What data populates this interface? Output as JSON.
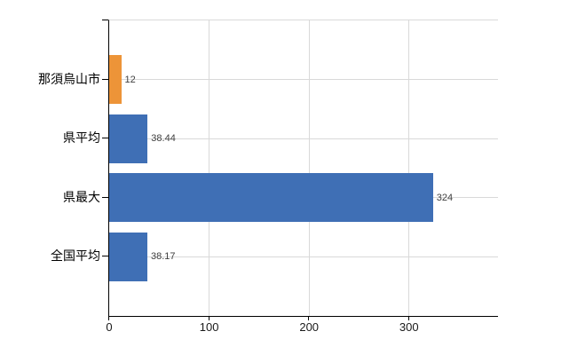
{
  "chart_data": {
    "type": "bar",
    "orientation": "horizontal",
    "title": "",
    "legend": "none",
    "grid": "on",
    "categories": [
      "那須烏山市",
      "県平均",
      "県最大",
      "全国平均"
    ],
    "values": [
      12,
      38.44,
      324,
      38.17
    ],
    "data_labels": [
      "12",
      "38.44",
      "324",
      "38.17"
    ],
    "bar_colors": [
      "#ed9438",
      "#3f6fb5",
      "#3f6fb5",
      "#3f6fb5"
    ],
    "x_tick_values": [
      0,
      100,
      200,
      300
    ],
    "x_tick_labels": [
      "0",
      "100",
      "200",
      "300"
    ],
    "xlim": [
      0,
      389
    ],
    "colors": {
      "highlight_bar": "#ed9438",
      "default_bar": "#3f6fb5",
      "gridline": "#d9d9d9",
      "axis": "#000000",
      "category_label": "#000000",
      "value_label": "#404040",
      "background": "#ffffff"
    }
  }
}
